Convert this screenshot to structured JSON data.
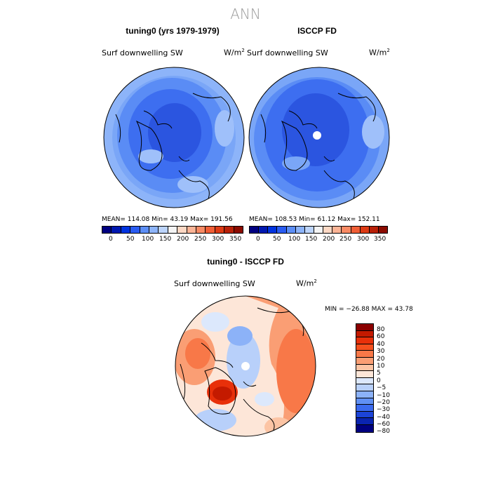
{
  "figure": {
    "title": "ANN"
  },
  "panels": {
    "model": {
      "title": "tuning0 (yrs 1979-1979)",
      "variable": "Surf downwelling SW",
      "units": "W/m",
      "units_sup": "2",
      "stats": "MEAN=  114.08   Min=   43.19    Max=  191.56",
      "field_colors": [
        "#2b55e0",
        "#3d6ef0",
        "#5a8cf5",
        "#7aa6f7",
        "#9fc0fa"
      ]
    },
    "obs": {
      "title": "ISCCP FD",
      "variable": "Surf downwelling SW",
      "units": "W/m",
      "units_sup": "2",
      "stats": "MEAN=  108.53   Min=   61.12    Max=  152.11",
      "field_colors": [
        "#2b55e0",
        "#3d6ef0",
        "#5a8cf5",
        "#7aa6f7",
        "#9fc0fa"
      ]
    },
    "diff": {
      "title": "tuning0 - ISCCP FD",
      "variable": "Surf downwelling SW",
      "units": "W/m",
      "units_sup": "2",
      "stats": "MIN = −26.88  MAX =   43.78"
    }
  },
  "colorbar_abs": {
    "ticks": [
      "0",
      "50",
      "100",
      "150",
      "200",
      "250",
      "300",
      "350"
    ],
    "colors": [
      "#000080",
      "#0018b0",
      "#0033e0",
      "#2a5cf2",
      "#5c8ef6",
      "#8db4f9",
      "#bcd4fb",
      "#f4f4f4",
      "#fcd8c4",
      "#fbb496",
      "#f88a64",
      "#f05e36",
      "#dd3a14",
      "#b82008",
      "#8b0b00"
    ]
  },
  "colorbar_diff": {
    "ticks": [
      "80",
      "60",
      "40",
      "30",
      "20",
      "10",
      "5",
      "0",
      "−5",
      "−10",
      "−20",
      "−30",
      "−40",
      "−60",
      "−80"
    ],
    "colors": [
      "#8b0000",
      "#c41a00",
      "#e8300a",
      "#f5501e",
      "#f87848",
      "#fa9e74",
      "#fcc4a4",
      "#fde6d8",
      "#dce8fc",
      "#b8d0fa",
      "#8cb2f8",
      "#6090f4",
      "#3a6aee",
      "#1c44d8",
      "#0a24b0",
      "#000080"
    ]
  }
}
